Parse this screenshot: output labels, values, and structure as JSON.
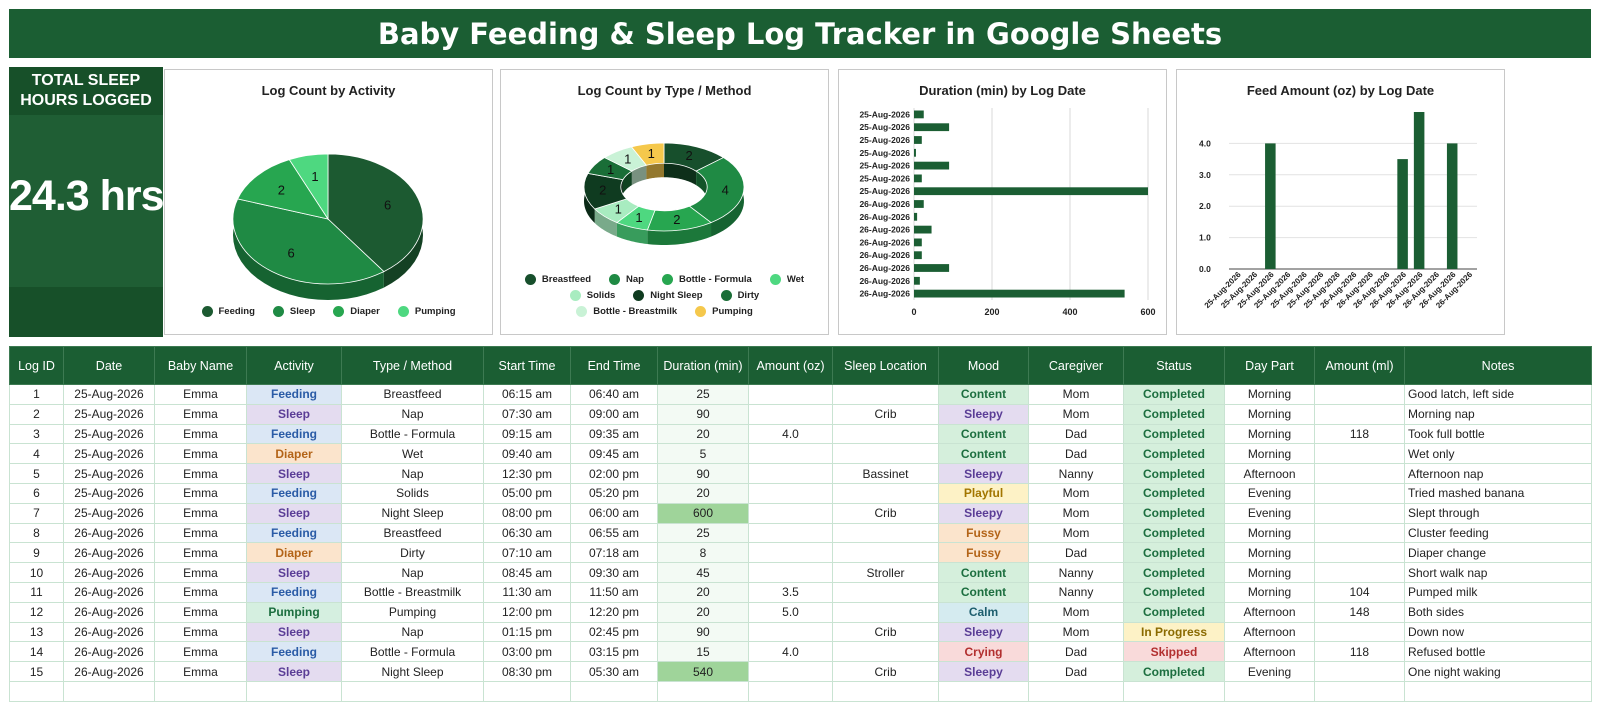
{
  "title": "Baby Feeding & Sleep Log Tracker in Google Sheets",
  "kpi": {
    "label": "TOTAL SLEEP HOURS LOGGED",
    "value": "24.3 hrs"
  },
  "chart_data": [
    {
      "type": "pie",
      "title": "Log Count by Activity",
      "categories": [
        "Feeding",
        "Sleep",
        "Diaper",
        "Pumping"
      ],
      "values": [
        6,
        6,
        2,
        1
      ],
      "colors": [
        "#1c5a31",
        "#1f8a44",
        "#27a650",
        "#4ed880"
      ],
      "legend": "bottom"
    },
    {
      "type": "pie",
      "title": "Log Count by Type / Method",
      "categories": [
        "Breastfeed",
        "Nap",
        "Bottle - Formula",
        "Wet",
        "Solids",
        "Night Sleep",
        "Dirty",
        "Bottle - Breastmilk",
        "Pumping"
      ],
      "values": [
        2,
        4,
        2,
        1,
        1,
        2,
        1,
        1,
        1
      ],
      "colors": [
        "#174f2c",
        "#1f8a44",
        "#27a650",
        "#4ed880",
        "#a8ecc0",
        "#0f3b20",
        "#1a6e37",
        "#c9f2d6",
        "#f5c84c"
      ],
      "legend": "bottom"
    },
    {
      "type": "bar",
      "orientation": "horizontal",
      "title": "Duration (min) by Log Date",
      "categories": [
        "25-Aug-2026",
        "25-Aug-2026",
        "25-Aug-2026",
        "25-Aug-2026",
        "25-Aug-2026",
        "25-Aug-2026",
        "25-Aug-2026",
        "26-Aug-2026",
        "26-Aug-2026",
        "26-Aug-2026",
        "26-Aug-2026",
        "26-Aug-2026",
        "26-Aug-2026",
        "26-Aug-2026",
        "26-Aug-2026"
      ],
      "values": [
        25,
        90,
        20,
        5,
        90,
        20,
        600,
        25,
        8,
        45,
        20,
        20,
        90,
        15,
        540
      ],
      "xlim": [
        0,
        600
      ],
      "xticks": [
        0,
        200,
        400,
        600
      ],
      "color": "#1b5e33"
    },
    {
      "type": "bar",
      "title": "Feed Amount (oz) by Log Date",
      "categories": [
        "25-Aug-2026",
        "25-Aug-2026",
        "25-Aug-2026",
        "25-Aug-2026",
        "25-Aug-2026",
        "25-Aug-2026",
        "25-Aug-2026",
        "26-Aug-2026",
        "26-Aug-2026",
        "26-Aug-2026",
        "26-Aug-2026",
        "26-Aug-2026",
        "26-Aug-2026",
        "26-Aug-2026",
        "26-Aug-2026"
      ],
      "values": [
        0,
        0,
        4.0,
        0,
        0,
        0,
        0,
        0,
        0,
        0,
        3.5,
        5.0,
        0,
        4.0,
        0
      ],
      "ylim": [
        0,
        5
      ],
      "yticks": [
        "0.0",
        "1.0",
        "2.0",
        "3.0",
        "4.0"
      ],
      "color": "#1b5e33"
    }
  ],
  "table": {
    "headers": [
      "Log ID",
      "Date",
      "Baby Name",
      "Activity",
      "Type / Method",
      "Start Time",
      "End Time",
      "Duration (min)",
      "Amount (oz)",
      "Sleep Location",
      "Mood",
      "Caregiver",
      "Status",
      "Day Part",
      "Amount (ml)",
      "Notes"
    ],
    "rows": [
      [
        "1",
        "25-Aug-2026",
        "Emma",
        "Feeding",
        "Breastfeed",
        "06:15 am",
        "06:40 am",
        "25",
        "",
        "",
        "Content",
        "Mom",
        "Completed",
        "Morning",
        "",
        "Good latch, left side"
      ],
      [
        "2",
        "25-Aug-2026",
        "Emma",
        "Sleep",
        "Nap",
        "07:30 am",
        "09:00 am",
        "90",
        "",
        "Crib",
        "Sleepy",
        "Mom",
        "Completed",
        "Morning",
        "",
        "Morning nap"
      ],
      [
        "3",
        "25-Aug-2026",
        "Emma",
        "Feeding",
        "Bottle - Formula",
        "09:15 am",
        "09:35 am",
        "20",
        "4.0",
        "",
        "Content",
        "Dad",
        "Completed",
        "Morning",
        "118",
        "Took full bottle"
      ],
      [
        "4",
        "25-Aug-2026",
        "Emma",
        "Diaper",
        "Wet",
        "09:40 am",
        "09:45 am",
        "5",
        "",
        "",
        "Content",
        "Dad",
        "Completed",
        "Morning",
        "",
        "Wet only"
      ],
      [
        "5",
        "25-Aug-2026",
        "Emma",
        "Sleep",
        "Nap",
        "12:30 pm",
        "02:00 pm",
        "90",
        "",
        "Bassinet",
        "Sleepy",
        "Nanny",
        "Completed",
        "Afternoon",
        "",
        "Afternoon nap"
      ],
      [
        "6",
        "25-Aug-2026",
        "Emma",
        "Feeding",
        "Solids",
        "05:00 pm",
        "05:20 pm",
        "20",
        "",
        "",
        "Playful",
        "Mom",
        "Completed",
        "Evening",
        "",
        "Tried mashed banana"
      ],
      [
        "7",
        "25-Aug-2026",
        "Emma",
        "Sleep",
        "Night Sleep",
        "08:00 pm",
        "06:00 am",
        "600",
        "",
        "Crib",
        "Sleepy",
        "Mom",
        "Completed",
        "Evening",
        "",
        "Slept through"
      ],
      [
        "8",
        "26-Aug-2026",
        "Emma",
        "Feeding",
        "Breastfeed",
        "06:30 am",
        "06:55 am",
        "25",
        "",
        "",
        "Fussy",
        "Mom",
        "Completed",
        "Morning",
        "",
        "Cluster feeding"
      ],
      [
        "9",
        "26-Aug-2026",
        "Emma",
        "Diaper",
        "Dirty",
        "07:10 am",
        "07:18 am",
        "8",
        "",
        "",
        "Fussy",
        "Dad",
        "Completed",
        "Morning",
        "",
        "Diaper change"
      ],
      [
        "10",
        "26-Aug-2026",
        "Emma",
        "Sleep",
        "Nap",
        "08:45 am",
        "09:30 am",
        "45",
        "",
        "Stroller",
        "Content",
        "Nanny",
        "Completed",
        "Morning",
        "",
        "Short walk nap"
      ],
      [
        "11",
        "26-Aug-2026",
        "Emma",
        "Feeding",
        "Bottle - Breastmilk",
        "11:30 am",
        "11:50 am",
        "20",
        "3.5",
        "",
        "Content",
        "Nanny",
        "Completed",
        "Morning",
        "104",
        "Pumped milk"
      ],
      [
        "12",
        "26-Aug-2026",
        "Emma",
        "Pumping",
        "Pumping",
        "12:00 pm",
        "12:20 pm",
        "20",
        "5.0",
        "",
        "Calm",
        "Mom",
        "Completed",
        "Afternoon",
        "148",
        "Both sides"
      ],
      [
        "13",
        "26-Aug-2026",
        "Emma",
        "Sleep",
        "Nap",
        "01:15 pm",
        "02:45 pm",
        "90",
        "",
        "Crib",
        "Sleepy",
        "Mom",
        "In Progress",
        "Afternoon",
        "",
        "Down now"
      ],
      [
        "14",
        "26-Aug-2026",
        "Emma",
        "Feeding",
        "Bottle - Formula",
        "03:00 pm",
        "03:15 pm",
        "15",
        "4.0",
        "",
        "Crying",
        "Dad",
        "Skipped",
        "Afternoon",
        "118",
        "Refused bottle"
      ],
      [
        "15",
        "26-Aug-2026",
        "Emma",
        "Sleep",
        "Night Sleep",
        "08:30 pm",
        "05:30 am",
        "540",
        "",
        "Crib",
        "Sleepy",
        "Dad",
        "Completed",
        "Evening",
        "",
        "One night waking"
      ]
    ]
  }
}
